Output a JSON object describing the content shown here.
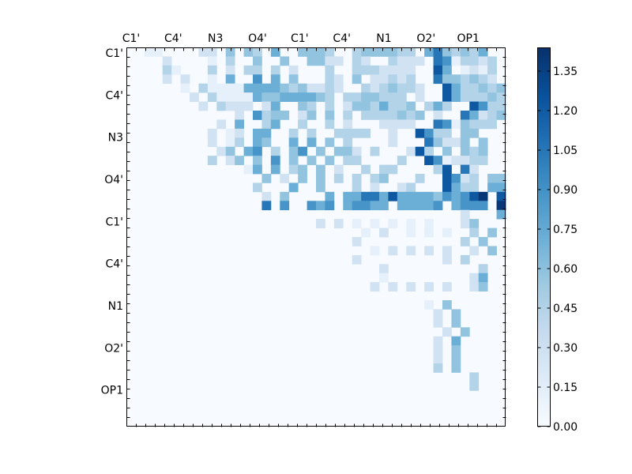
{
  "chart_data": {
    "type": "heatmap",
    "title": "",
    "xlabel": "",
    "ylabel": "",
    "x_tick_labels": [
      "C1'",
      "C4'",
      "N3",
      "O4'",
      "C1'",
      "C4'",
      "N1",
      "O2'",
      "OP1"
    ],
    "y_tick_labels": [
      "C1'",
      "C4'",
      "N3",
      "O4'",
      "C1'",
      "C4'",
      "N1",
      "O2'",
      "OP1"
    ],
    "colormap": "Blues",
    "colorbar": {
      "vmin": 0.0,
      "vmax": 1.44,
      "ticks": [
        0.0,
        0.15,
        0.3,
        0.45,
        0.6,
        0.75,
        0.9,
        1.05,
        1.2,
        1.35
      ],
      "tick_labels": [
        "0.00",
        "0.15",
        "0.30",
        "0.45",
        "0.60",
        "0.75",
        "0.90",
        "1.05",
        "1.20",
        "1.35"
      ]
    },
    "grid": false,
    "rows": [
      "..11....22.4.43.5..4443..3444433.5743435..",
      "....2....1.3..4..4..4422.32..3222.7613323.",
      "....31...3.2.33.3.2...3..3332222..85.1213.",
      "....2.2..1.5..6.5.4...32.4.22323..7443432.",
      "......1.3111155554342232..3234332..8533434.",
      ".......2.31111544555543.3344333.2..8533343.",
      "........2.3222.25..43.3.24435334.353..8633433.",
      "............2.6344.24.4.3.3333434.2..7523443.",
      "..........2.5..35..3..3.2...2222..7614333.",
      ".........2.12.55..3.3..3333..2..8633.44.",
      ".........2.13.54..5.5.4.3....2...74224.4.",
      "..........24.56.3.46.4.442.3...283.4.434.",
      ".........3.24.4.6.4.4.4.33....3..8612233.",
      ".............15.5.34.4.2..3.33....38.72....",
      "...............4.2.4.4.3.3.34...3..8623.44.",
      "..............3...5..4...3.2..23...8533.55.",
      "...............2.4....5.5577585555465689.875.",
      "...............7.6..656.56655.55556.5666.9676.",
      ".....................................2...5.",
      ".....................2.2.1.1.1.1.1...24.",
      "..........................1.2..1.1.1..3.4.",
      ".........................2...........3.4.",
      "...........................1.2.2.2.2..2.4.",
      ".........................2.........2.3.",
      "............................2..........3.",
      "............................1.........25.",
      "...........................2.2.2.2.2..24.",
      "............................................",
      ".................................1.4.",
      "..................................2.4.",
      "..................................2.4.",
      "...................................2.4.",
      "..................................2.5.",
      "..................................2.4.",
      "..................................2.4.",
      "..................................3.4.",
      "......................................3.",
      "......................................3.",
      ".........................................",
      ".........................................",
      ".........................................",
      "........................................."
    ],
    "level_values": {
      ".": 0.0,
      "1": 0.12,
      "2": 0.28,
      "3": 0.45,
      "4": 0.58,
      "5": 0.72,
      "6": 0.88,
      "7": 1.05,
      "8": 1.22,
      "9": 1.4
    }
  }
}
